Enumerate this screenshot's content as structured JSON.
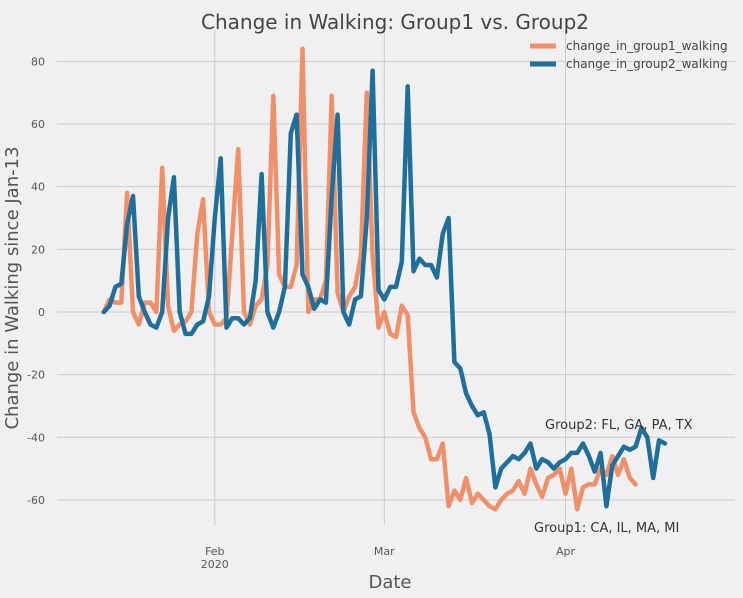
{
  "chart_data": {
    "type": "line",
    "title": "Change in Walking: Group1 vs. Group2",
    "xlabel": "Date",
    "ylabel": "Change in Walking since Jan-13",
    "x_start": "2020-01-13",
    "x_range": [
      "2020-01-05",
      "2020-04-30"
    ],
    "ylim": [
      -68,
      90
    ],
    "yticks": [
      -60,
      -40,
      -20,
      0,
      20,
      40,
      60,
      80
    ],
    "xticks": [
      {
        "date": "2020-02-01",
        "label": "Feb",
        "sublabel": "2020"
      },
      {
        "date": "2020-03-01",
        "label": "Mar",
        "sublabel": ""
      },
      {
        "date": "2020-04-01",
        "label": "Apr",
        "sublabel": ""
      }
    ],
    "grid": true,
    "legend_position": "top-right",
    "series": [
      {
        "name": "change_in_group1_walking",
        "color": "#f0906a",
        "values": [
          0,
          4,
          3,
          3,
          38,
          0,
          -4,
          3,
          3,
          0,
          46,
          2,
          -6,
          -4,
          -3,
          0,
          25,
          36,
          0,
          -4,
          -4,
          -2,
          25,
          52,
          0,
          -4,
          2,
          4,
          15,
          69,
          12,
          8,
          8,
          15,
          84,
          0,
          4,
          4,
          10,
          69,
          6,
          0,
          5,
          8,
          18,
          70,
          18,
          -5,
          0,
          -7,
          -8,
          2,
          -1,
          -32,
          -37,
          -40,
          -47,
          -47,
          -42,
          -62,
          -57,
          -60,
          -53,
          -61,
          -58,
          -60,
          -62,
          -63,
          -60,
          -58,
          -57,
          -54,
          -58,
          -50,
          -55,
          -59,
          -53,
          -52,
          -50,
          -58,
          -50,
          -63,
          -56,
          -55,
          -55,
          -50,
          -52,
          -46,
          -52,
          -47,
          -53,
          -55
        ]
      },
      {
        "name": "change_in_group2_walking",
        "color": "#1f6f9a",
        "values": [
          0,
          2,
          8,
          9,
          28,
          37,
          5,
          0,
          -4,
          -5,
          0,
          30,
          43,
          0,
          -7,
          -7,
          -4,
          -3,
          5,
          30,
          49,
          -5,
          -2,
          -2,
          -4,
          -2,
          10,
          44,
          0,
          -5,
          0,
          8,
          57,
          63,
          12,
          8,
          1,
          4,
          3,
          37,
          63,
          0,
          -4,
          4,
          5,
          30,
          77,
          7,
          4,
          8,
          8,
          16,
          72,
          13,
          17,
          15,
          15,
          11,
          25,
          30,
          -16,
          -18,
          -26,
          -30,
          -33,
          -32,
          -39,
          -56,
          -50,
          -48,
          -46,
          -47,
          -45,
          -42,
          -50,
          -47,
          -48,
          -50,
          -48,
          -47,
          -45,
          -45,
          -42,
          -46,
          -51,
          -45,
          -62,
          -49,
          -46,
          -43,
          -44,
          -43,
          -37,
          -40,
          -53,
          -41,
          -42
        ]
      }
    ],
    "annotations": [
      "Group2: FL, GA, PA, TX",
      "Group1: CA, IL, MA, MI"
    ]
  }
}
